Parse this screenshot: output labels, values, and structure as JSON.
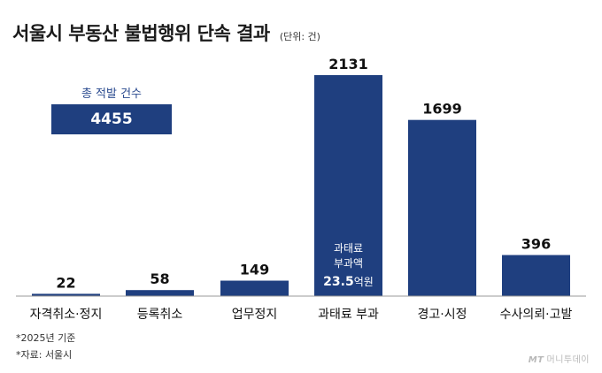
{
  "title": "서울시 부동산 불법행위 단속 결과",
  "unit": "(단위: 건)",
  "summary": {
    "label": "총 적발 건수",
    "value": "4455"
  },
  "annotation": {
    "line1": "과태료",
    "line2": "부과액",
    "amount": "23.5",
    "amount_unit": "억원"
  },
  "footnotes": [
    "*2025년 기준",
    "*자료: 서울시"
  ],
  "watermark": {
    "mt": "MT",
    "name": "머니투데이"
  },
  "colors": {
    "bar": "#1f3f7f",
    "axis": "#9a9a9a",
    "annotation_text": "#ffffff",
    "summary_label": "#2a4a8f"
  },
  "chart_data": {
    "type": "bar",
    "categories": [
      "자격취소·정지",
      "등록취소",
      "업무정지",
      "과태료 부과",
      "경고·시정",
      "수사의뢰·고발"
    ],
    "values": [
      22,
      58,
      149,
      2131,
      1699,
      396
    ],
    "value_labels": [
      "22",
      "58",
      "149",
      "2131",
      "1699",
      "396"
    ],
    "ylim": [
      0,
      2131
    ],
    "grid": false,
    "legend": "none"
  }
}
